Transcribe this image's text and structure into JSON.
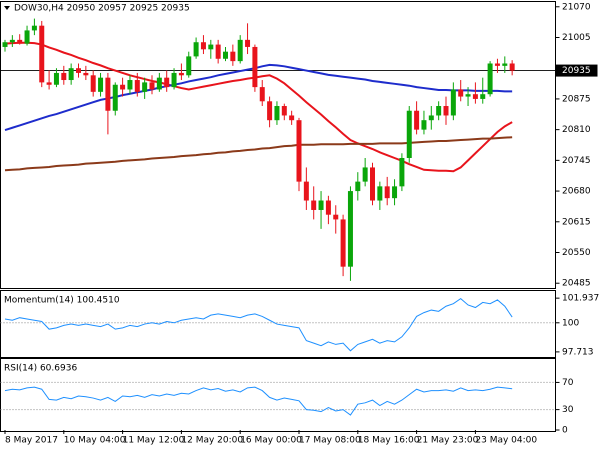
{
  "chart_data": [
    {
      "type": "candlestick",
      "title": "DOW30,H4  20950 20957 20925 20935",
      "categories": [
        "8 May 2017",
        null,
        null,
        null,
        null,
        null,
        null,
        null,
        "10 May 04:00",
        null,
        null,
        null,
        null,
        null,
        null,
        null,
        "11 May 12:00",
        null,
        null,
        null,
        null,
        null,
        null,
        null,
        "12 May 20:00",
        null,
        null,
        null,
        null,
        null,
        null,
        null,
        "16 May 00:00",
        null,
        null,
        null,
        null,
        null,
        null,
        null,
        "17 May 08:00",
        null,
        null,
        null,
        null,
        null,
        null,
        null,
        "18 May 16:00",
        null,
        null,
        null,
        null,
        null,
        null,
        null,
        "21 May 23:00",
        null,
        null,
        null,
        null,
        null,
        null,
        null,
        "23 May 04:00",
        null,
        null,
        null,
        null,
        null
      ],
      "open": [
        20985,
        20995,
        21000,
        20992,
        21020,
        21030,
        20910,
        20905,
        20930,
        20915,
        20940,
        20930,
        20925,
        20890,
        20920,
        20850,
        20905,
        20895,
        20915,
        20890,
        20910,
        20895,
        20920,
        20900,
        20930,
        20925,
        20965,
        20995,
        20980,
        20990,
        20960,
        20975,
        20955,
        21000,
        20985,
        20900,
        20870,
        20830,
        20860,
        20840,
        20830,
        20700,
        20660,
        20640,
        20660,
        20630,
        20620,
        20520,
        20680,
        20700,
        20730,
        20660,
        20690,
        20665,
        20690,
        20750,
        20850,
        20810,
        20830,
        20840,
        20860,
        20840,
        20895,
        20880,
        20885,
        20875,
        20885,
        20950,
        20945,
        20950
      ],
      "high": [
        21000,
        21010,
        21012,
        21030,
        21045,
        21040,
        20935,
        20940,
        20945,
        20950,
        20950,
        20945,
        20935,
        20930,
        20930,
        20910,
        20920,
        20925,
        20930,
        20920,
        20925,
        20930,
        20935,
        20940,
        20950,
        20975,
        21005,
        21010,
        21000,
        21000,
        20985,
        20990,
        21010,
        21035,
        20990,
        20915,
        20880,
        20870,
        20865,
        20850,
        20835,
        20730,
        20690,
        20680,
        20670,
        20650,
        20630,
        20690,
        20720,
        20750,
        20740,
        20700,
        20710,
        20705,
        20760,
        20860,
        20870,
        20850,
        20860,
        20870,
        20880,
        20910,
        20915,
        20900,
        20910,
        20920,
        20955,
        20960,
        20965,
        20957
      ],
      "low": [
        20975,
        20985,
        20990,
        20988,
        21010,
        20900,
        20895,
        20900,
        20905,
        20905,
        20920,
        20915,
        20880,
        20880,
        20800,
        20840,
        20880,
        20885,
        20880,
        20875,
        20885,
        20890,
        20890,
        20895,
        20915,
        20920,
        20960,
        20970,
        20960,
        20950,
        20955,
        20945,
        20950,
        20970,
        20890,
        20860,
        20815,
        20820,
        20830,
        20820,
        20680,
        20640,
        20620,
        20600,
        20610,
        20590,
        20500,
        20490,
        20660,
        20690,
        20650,
        20640,
        20650,
        20650,
        20680,
        20740,
        20800,
        20800,
        20810,
        20830,
        20820,
        20830,
        20870,
        20860,
        20865,
        20865,
        20880,
        20930,
        20930,
        20925
      ],
      "close": [
        20995,
        21000,
        20992,
        21020,
        21030,
        20910,
        20905,
        20930,
        20915,
        20940,
        20930,
        20925,
        20890,
        20920,
        20850,
        20905,
        20895,
        20915,
        20890,
        20910,
        20895,
        20920,
        20900,
        20930,
        20925,
        20965,
        20995,
        20980,
        20990,
        20960,
        20975,
        20955,
        21000,
        20985,
        20900,
        20870,
        20830,
        20860,
        20840,
        20830,
        20700,
        20660,
        20640,
        20660,
        20630,
        20620,
        20520,
        20680,
        20700,
        20730,
        20660,
        20690,
        20665,
        20690,
        20750,
        20850,
        20810,
        20830,
        20840,
        20860,
        20840,
        20895,
        20880,
        20885,
        20875,
        20885,
        20950,
        20945,
        20950,
        20935
      ],
      "up_color": "#0aa60a",
      "down_color": "#e8141c",
      "series": [
        {
          "color": "#e8141c",
          "values": [
            20992,
            20993,
            20994,
            20994,
            20993,
            20990,
            20984,
            20979,
            20973,
            20968,
            20962,
            20957,
            20951,
            20946,
            20940,
            20935,
            20930,
            20925,
            20921,
            20917,
            20913,
            20910,
            20906,
            20902,
            20898,
            20895,
            20898,
            20901,
            20904,
            20907,
            20910,
            20913,
            20915,
            20918,
            20920,
            20923,
            20925,
            20918,
            20908,
            20895,
            20882,
            20868,
            20855,
            20842,
            20828,
            20815,
            20801,
            20788,
            20781,
            20775,
            20769,
            20762,
            20756,
            20750,
            20744,
            20737,
            20731,
            20725,
            20724,
            20723,
            20723,
            20722,
            20730,
            20745,
            20760,
            20775,
            20790,
            20805,
            20817,
            20826
          ]
        },
        {
          "color": "#1e2ccc",
          "values": [
            20809,
            20814,
            20819,
            20824,
            20829,
            20834,
            20839,
            20843,
            20848,
            20853,
            20858,
            20863,
            20868,
            20873,
            20876,
            20879,
            20883,
            20886,
            20889,
            20892,
            20895,
            20899,
            20902,
            20905,
            20908,
            20912,
            20915,
            20918,
            20921,
            20925,
            20928,
            20931,
            20934,
            20937,
            20940,
            20944,
            20947,
            20946,
            20944,
            20941,
            20938,
            20935,
            20932,
            20929,
            20926,
            20924,
            20922,
            20920,
            20918,
            20916,
            20913,
            20911,
            20909,
            20907,
            20905,
            20903,
            20900,
            20898,
            20896,
            20894,
            20894,
            20893,
            20893,
            20893,
            20892,
            20892,
            20892,
            20892,
            20891,
            20891
          ]
        },
        {
          "color": "#8b3a1a",
          "values": [
            20724,
            20725,
            20726,
            20728,
            20729,
            20730,
            20731,
            20733,
            20734,
            20735,
            20736,
            20738,
            20739,
            20740,
            20741,
            20742,
            20744,
            20745,
            20746,
            20747,
            20749,
            20750,
            20751,
            20752,
            20754,
            20755,
            20756,
            20758,
            20759,
            20761,
            20762,
            20764,
            20765,
            20767,
            20768,
            20770,
            20771,
            20773,
            20775,
            20776,
            20778,
            20778,
            20778,
            20779,
            20779,
            20779,
            20779,
            20780,
            20780,
            20780,
            20780,
            20781,
            20781,
            20781,
            20781,
            20782,
            20783,
            20784,
            20785,
            20786,
            20786,
            20787,
            20788,
            20789,
            20790,
            20791,
            20791,
            20792,
            20793,
            20794
          ]
        }
      ],
      "last_price": 20935,
      "ylim": [
        20477,
        21078
      ],
      "yticks": [
        21070,
        21005,
        20875,
        20810,
        20745,
        20680,
        20615,
        20550,
        20485
      ]
    },
    {
      "type": "line",
      "title": "Momentum(14) 100.4510",
      "color": "#1e90ff",
      "values": [
        100.3,
        100.2,
        100.4,
        100.3,
        100.2,
        100.1,
        99.5,
        99.6,
        99.8,
        99.9,
        99.8,
        99.9,
        99.8,
        99.7,
        99.9,
        99.5,
        99.6,
        99.8,
        99.7,
        99.9,
        100.0,
        99.9,
        100.1,
        100.0,
        100.2,
        100.3,
        100.4,
        100.3,
        100.6,
        100.7,
        100.6,
        100.5,
        100.4,
        100.6,
        100.7,
        100.5,
        100.2,
        99.9,
        99.8,
        99.7,
        99.6,
        98.6,
        98.4,
        98.2,
        98.5,
        98.3,
        98.4,
        97.8,
        98.3,
        98.5,
        98.7,
        98.4,
        98.6,
        98.5,
        98.9,
        99.6,
        100.5,
        100.8,
        101.0,
        100.9,
        101.3,
        101.5,
        101.9,
        101.4,
        101.2,
        101.6,
        101.5,
        101.8,
        101.3,
        100.451
      ],
      "levels": [
        100
      ],
      "ylim": [
        97.39,
        102.42
      ],
      "yticks": [
        101.937,
        100,
        97.713
      ]
    },
    {
      "type": "line",
      "title": "RSI(14) 60.6936",
      "color": "#1e90ff",
      "values": [
        58,
        60,
        59,
        62,
        63,
        60,
        45,
        44,
        48,
        46,
        50,
        49,
        47,
        44,
        48,
        42,
        50,
        49,
        51,
        48,
        52,
        50,
        53,
        51,
        54,
        53,
        58,
        62,
        59,
        61,
        57,
        59,
        56,
        62,
        63,
        58,
        48,
        44,
        47,
        45,
        43,
        30,
        29,
        27,
        33,
        28,
        30,
        22,
        38,
        40,
        44,
        36,
        42,
        38,
        44,
        52,
        60,
        56,
        58,
        58,
        59,
        57,
        62,
        58,
        59,
        58,
        60,
        63,
        62,
        60.6936
      ],
      "levels": [
        70,
        30
      ],
      "ylim": [
        0,
        103
      ],
      "yticks": [
        70,
        30,
        0
      ]
    }
  ]
}
